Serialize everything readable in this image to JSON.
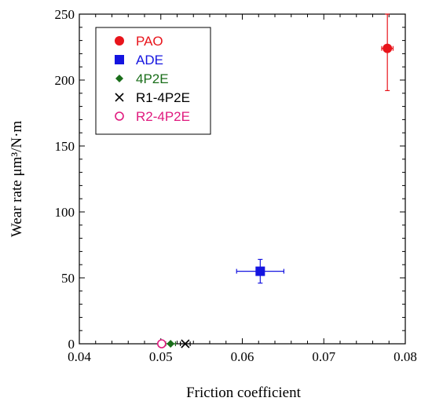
{
  "chart_data": {
    "type": "scatter",
    "xlabel": "Friction coefficient",
    "ylabel": "Wear rate μm³/N·m",
    "xlim": [
      0.04,
      0.08
    ],
    "ylim": [
      0,
      250
    ],
    "xticks": [
      "0.04",
      "0.05",
      "0.06",
      "0.07",
      "0.08"
    ],
    "yticks": [
      "0",
      "50",
      "100",
      "150",
      "200",
      "250"
    ],
    "legend_position": "top-left",
    "series": [
      {
        "name": "PAO",
        "color": "#e8141b",
        "marker": "filled-circle",
        "points": [
          {
            "x": 0.0778,
            "y": 224,
            "xerr": 0.0007,
            "yerr": 32
          }
        ]
      },
      {
        "name": "ADE",
        "color": "#1414e0",
        "marker": "filled-square",
        "points": [
          {
            "x": 0.0622,
            "y": 55,
            "xerr": 0.0029,
            "yerr": 9
          }
        ]
      },
      {
        "name": "4P2E",
        "color": "#1a6e1a",
        "marker": "filled-diamond",
        "points": [
          {
            "x": 0.0512,
            "y": 0,
            "xerr": 0.0006,
            "yerr": 0
          }
        ]
      },
      {
        "name": "R1-4P2E",
        "color": "#000000",
        "marker": "x",
        "points": [
          {
            "x": 0.053,
            "y": 0,
            "xerr": 0.0006,
            "yerr": 0
          }
        ]
      },
      {
        "name": "R2-4P2E",
        "color": "#e0197e",
        "marker": "open-circle",
        "points": [
          {
            "x": 0.0501,
            "y": 0,
            "xerr": 0.0004,
            "yerr": 0
          }
        ]
      }
    ]
  }
}
